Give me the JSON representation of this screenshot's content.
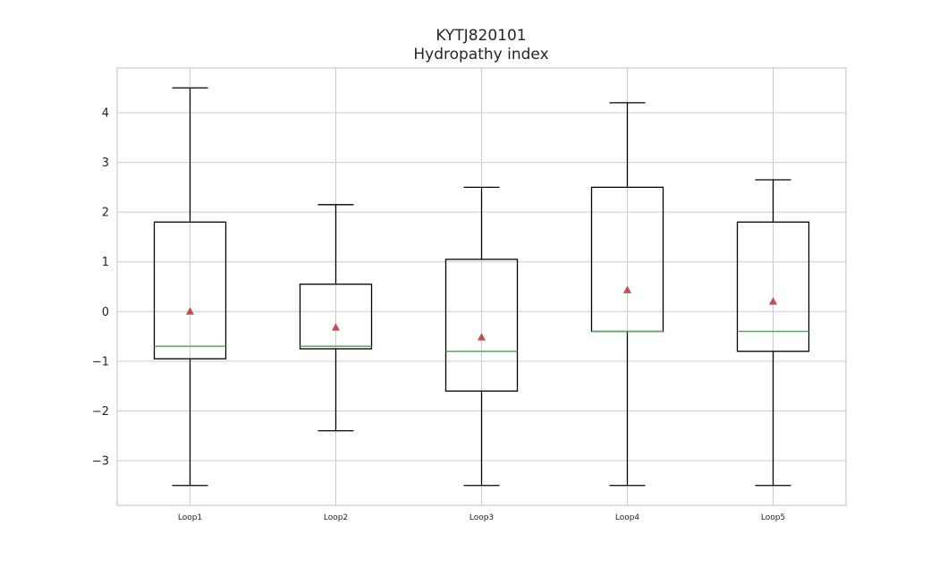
{
  "chart_data": {
    "type": "box",
    "title": "KYTJ820101",
    "subtitle": "Hydropathy index",
    "categories": [
      "Loop1",
      "Loop2",
      "Loop3",
      "Loop4",
      "Loop5"
    ],
    "yticks": [
      "−3",
      "−2",
      "−1",
      "0",
      "1",
      "2",
      "3",
      "4"
    ],
    "ytick_values": [
      -3,
      -2,
      -1,
      0,
      1,
      2,
      3,
      4
    ],
    "ylim": [
      -3.9,
      4.9
    ],
    "grid": true,
    "boxes": [
      {
        "whislo": -3.5,
        "q1": -0.95,
        "med": -0.7,
        "q3": 1.8,
        "whishi": 4.5,
        "mean": 0.0
      },
      {
        "whislo": -2.4,
        "q1": -0.75,
        "med": -0.7,
        "q3": 0.55,
        "whishi": 2.15,
        "mean": -0.32
      },
      {
        "whislo": -3.5,
        "q1": -1.6,
        "med": -0.8,
        "q3": 1.05,
        "whishi": 2.5,
        "mean": -0.52
      },
      {
        "whislo": -3.5,
        "q1": -0.4,
        "med": -0.4,
        "q3": 2.5,
        "whishi": 4.2,
        "mean": 0.43
      },
      {
        "whislo": -3.5,
        "q1": -0.8,
        "med": -0.4,
        "q3": 1.8,
        "whishi": 2.65,
        "mean": 0.2
      }
    ],
    "colors": {
      "median": "#55a868",
      "mean": "#c44e52",
      "box": "#000000",
      "grid": "#cccccc",
      "frame": "#cccccc"
    }
  }
}
